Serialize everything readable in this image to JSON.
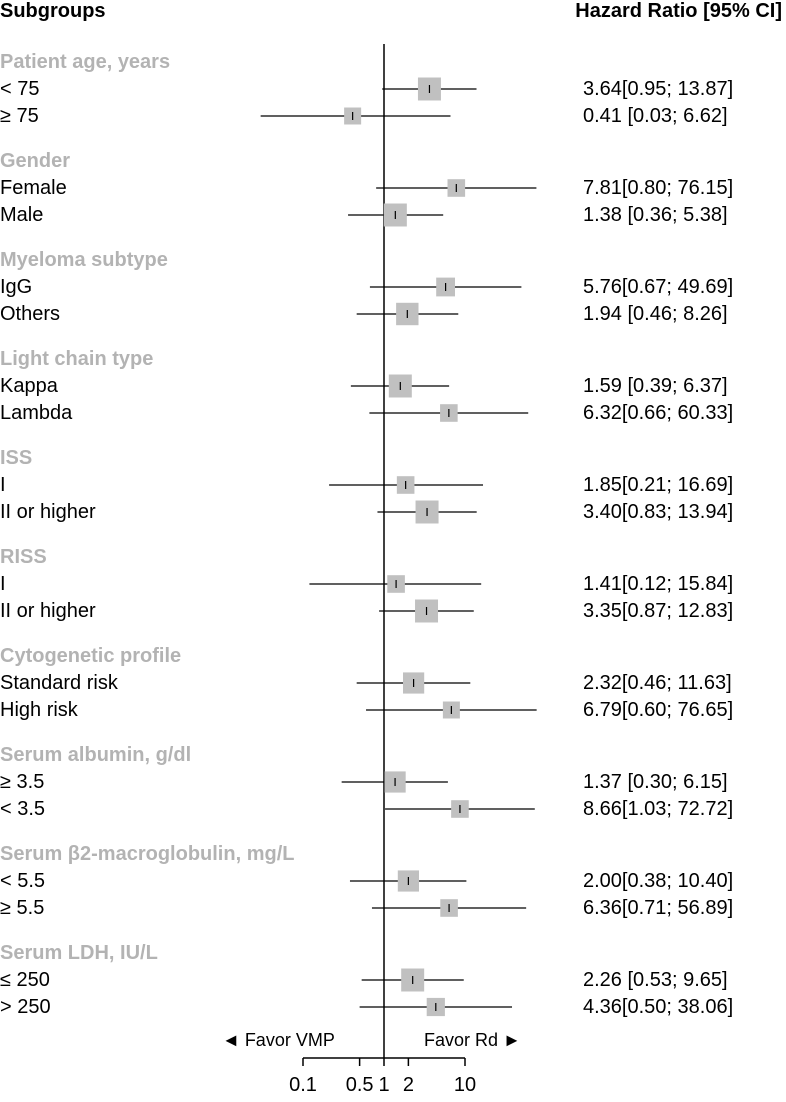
{
  "header": {
    "left": "Subgroups",
    "right": "Hazard Ratio [95% CI]"
  },
  "chart_data": {
    "type": "forest",
    "x_scale": "log",
    "xlim": [
      0.1,
      10
    ],
    "reference_line": 1,
    "x_ticks": [
      {
        "value": 0.1,
        "label": "0.1"
      },
      {
        "value": 0.5,
        "label": "0.5"
      },
      {
        "value": 1,
        "label": "1"
      },
      {
        "value": 2,
        "label": "2"
      },
      {
        "value": 10,
        "label": "10"
      }
    ],
    "favor_left": "◄ Favor VMP",
    "favor_right": "Favor Rd ►",
    "groups": [
      {
        "label": "Patient age, years",
        "rows": [
          {
            "label": "< 75",
            "hr": 3.64,
            "lo": 0.95,
            "hi": 13.87,
            "text": "3.64[0.95; 13.87]",
            "weight": 1.0
          },
          {
            "label": "≥ 75",
            "hr": 0.41,
            "lo": 0.03,
            "hi": 6.62,
            "text": "0.41 [0.03; 6.62]",
            "weight": 0.5
          }
        ]
      },
      {
        "label": "Gender",
        "rows": [
          {
            "label": "Female",
            "hr": 7.81,
            "lo": 0.8,
            "hi": 76.15,
            "text": "7.81[0.80; 76.15]",
            "weight": 0.55
          },
          {
            "label": "Male",
            "hr": 1.38,
            "lo": 0.36,
            "hi": 5.38,
            "text": "1.38 [0.36; 5.38]",
            "weight": 1.0
          }
        ]
      },
      {
        "label": "Myeloma subtype",
        "rows": [
          {
            "label": "IgG",
            "hr": 5.76,
            "lo": 0.67,
            "hi": 49.69,
            "text": "5.76[0.67; 49.69]",
            "weight": 0.65
          },
          {
            "label": "Others",
            "hr": 1.94,
            "lo": 0.46,
            "hi": 8.26,
            "text": "1.94 [0.46; 8.26]",
            "weight": 0.95
          }
        ]
      },
      {
        "label": "Light chain type",
        "rows": [
          {
            "label": "Kappa",
            "hr": 1.59,
            "lo": 0.39,
            "hi": 6.37,
            "text": "1.59 [0.39; 6.37]",
            "weight": 1.0
          },
          {
            "label": "Lambda",
            "hr": 6.32,
            "lo": 0.66,
            "hi": 60.33,
            "text": "6.32[0.66; 60.33]",
            "weight": 0.55
          }
        ]
      },
      {
        "label": "ISS",
        "rows": [
          {
            "label": "I",
            "hr": 1.85,
            "lo": 0.21,
            "hi": 16.69,
            "text": "1.85[0.21; 16.69]",
            "weight": 0.55
          },
          {
            "label": "II or higher",
            "hr": 3.4,
            "lo": 0.83,
            "hi": 13.94,
            "text": "3.40[0.83; 13.94]",
            "weight": 1.0
          }
        ]
      },
      {
        "label": "RISS",
        "rows": [
          {
            "label": "I",
            "hr": 1.41,
            "lo": 0.12,
            "hi": 15.84,
            "text": "1.41[0.12; 15.84]",
            "weight": 0.55
          },
          {
            "label": "II or higher",
            "hr": 3.35,
            "lo": 0.87,
            "hi": 12.83,
            "text": "3.35[0.87; 12.83]",
            "weight": 1.0
          }
        ]
      },
      {
        "label": "Cytogenetic profile",
        "rows": [
          {
            "label": "Standard risk",
            "hr": 2.32,
            "lo": 0.46,
            "hi": 11.63,
            "text": "2.32[0.46; 11.63]",
            "weight": 0.85
          },
          {
            "label": "High risk",
            "hr": 6.79,
            "lo": 0.6,
            "hi": 76.65,
            "text": "6.79[0.60; 76.65]",
            "weight": 0.5
          }
        ]
      },
      {
        "label": "Serum albumin, g/dl",
        "rows": [
          {
            "label": "≥ 3.5",
            "hr": 1.37,
            "lo": 0.3,
            "hi": 6.15,
            "text": "1.37 [0.30; 6.15]",
            "weight": 0.85
          },
          {
            "label": "< 3.5",
            "hr": 8.66,
            "lo": 1.03,
            "hi": 72.72,
            "text": "8.66[1.03; 72.72]",
            "weight": 0.55
          }
        ]
      },
      {
        "label": "Serum β2-macroglobulin, mg/L",
        "rows": [
          {
            "label": "< 5.5",
            "hr": 2.0,
            "lo": 0.38,
            "hi": 10.4,
            "text": "2.00[0.38; 10.40]",
            "weight": 0.85
          },
          {
            "label": "≥ 5.5",
            "hr": 6.36,
            "lo": 0.71,
            "hi": 56.89,
            "text": "6.36[0.71; 56.89]",
            "weight": 0.55
          }
        ]
      },
      {
        "label": "Serum LDH, IU/L",
        "rows": [
          {
            "label": "≤ 250",
            "hr": 2.26,
            "lo": 0.53,
            "hi": 9.65,
            "text": "2.26 [0.53; 9.65]",
            "weight": 1.0
          },
          {
            "label": "> 250",
            "hr": 4.36,
            "lo": 0.5,
            "hi": 38.06,
            "text": "4.36[0.50; 38.06]",
            "weight": 0.6
          }
        ]
      }
    ],
    "colors": {
      "marker": "#c0c0c0",
      "line": "#000000",
      "group_label": "#b3b3b3"
    }
  }
}
